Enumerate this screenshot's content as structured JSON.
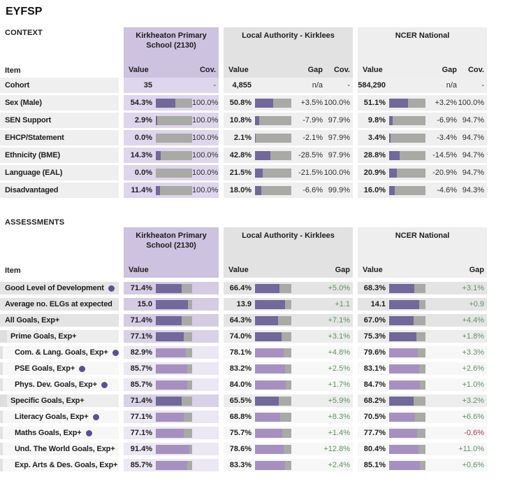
{
  "title": "EYFSP",
  "colors": {
    "school_header_bg": "#cdc2df",
    "school_cell_bg": "#ded6ec",
    "la_header_bg": "#e2e2e2",
    "nat_header_bg": "#eeeeee",
    "row_bg_context": "#efefef",
    "row_bg_l1": "#e4e4e4",
    "row_bg_l2": "#ededed",
    "row_bg_l3": "#f7f7f7",
    "school_bg_l1": "#d5cce4",
    "school_bg_l2": "#d9d1e8",
    "school_bg_l3": "#ece7f4",
    "bar_dark": "#72689a",
    "bar_light": "#a690c0",
    "bar_track": "#a9a9a6",
    "gap_positive": "#5e9160",
    "gap_negative": "#a53c52",
    "dot": "#5a5191"
  },
  "context": {
    "label": "CONTEXT",
    "item_header": "Item",
    "school": {
      "title": "Kirkheaton Primary School (2130)",
      "col_value": "Value",
      "col_cov": "Cov."
    },
    "la": {
      "title": "Local Authority - Kirklees",
      "col_value": "Value",
      "col_gap": "Gap",
      "col_cov": "Cov."
    },
    "nat": {
      "title": "NCER National",
      "col_value": "Value",
      "col_gap": "Gap",
      "col_cov": "Cov."
    },
    "rows": [
      {
        "label": "Cohort",
        "school": {
          "value": "35",
          "cov": "-"
        },
        "la": {
          "value": "4,855",
          "gap": "n/a",
          "cov": "-"
        },
        "nat": {
          "value": "584,290",
          "gap": "n/a",
          "cov": "-"
        }
      },
      {
        "label": "Sex (Male)",
        "school": {
          "value": "54.3%",
          "pct": 54.3,
          "cov": "100.0%"
        },
        "la": {
          "value": "50.8%",
          "pct": 50.8,
          "gap": "+3.5%",
          "cov": "100.0%"
        },
        "nat": {
          "value": "51.1%",
          "pct": 51.1,
          "gap": "+3.2%",
          "cov": "100.0%"
        }
      },
      {
        "label": "SEN Support",
        "school": {
          "value": "2.9%",
          "pct": 2.9,
          "cov": "100.0%"
        },
        "la": {
          "value": "10.8%",
          "pct": 10.8,
          "gap": "-7.9%",
          "cov": "97.9%"
        },
        "nat": {
          "value": "9.8%",
          "pct": 9.8,
          "gap": "-6.9%",
          "cov": "94.7%"
        }
      },
      {
        "label": "EHCP/Statement",
        "school": {
          "value": "0.0%",
          "pct": 0.0,
          "cov": "100.0%"
        },
        "la": {
          "value": "2.1%",
          "pct": 2.1,
          "gap": "-2.1%",
          "cov": "97.9%"
        },
        "nat": {
          "value": "3.4%",
          "pct": 3.4,
          "gap": "-3.4%",
          "cov": "94.7%"
        }
      },
      {
        "label": "Ethnicity (BME)",
        "school": {
          "value": "14.3%",
          "pct": 14.3,
          "cov": "100.0%"
        },
        "la": {
          "value": "42.8%",
          "pct": 42.8,
          "gap": "-28.5%",
          "cov": "97.9%"
        },
        "nat": {
          "value": "28.8%",
          "pct": 28.8,
          "gap": "-14.5%",
          "cov": "94.7%"
        }
      },
      {
        "label": "Language (EAL)",
        "school": {
          "value": "0.0%",
          "pct": 0.0,
          "cov": "100.0%"
        },
        "la": {
          "value": "21.5%",
          "pct": 21.5,
          "gap": "-21.5%",
          "cov": "100.0%"
        },
        "nat": {
          "value": "20.9%",
          "pct": 20.9,
          "gap": "-20.9%",
          "cov": "94.7%"
        }
      },
      {
        "label": "Disadvantaged",
        "school": {
          "value": "11.4%",
          "pct": 11.4,
          "cov": "100.0%"
        },
        "la": {
          "value": "18.0%",
          "pct": 18.0,
          "gap": "-6.6%",
          "cov": "99.9%"
        },
        "nat": {
          "value": "16.0%",
          "pct": 16.0,
          "gap": "-4.6%",
          "cov": "94.3%"
        }
      }
    ]
  },
  "assessments": {
    "label": "ASSESSMENTS",
    "item_header": "Item",
    "school": {
      "title": "Kirkheaton Primary School (2130)",
      "col_value": "Value"
    },
    "la": {
      "title": "Local Authority - Kirklees",
      "col_value": "Value",
      "col_gap": "Gap"
    },
    "nat": {
      "title": "NCER National",
      "col_value": "Value",
      "col_gap": "Gap"
    },
    "rows": [
      {
        "label": "Good Level of Development",
        "dot": true,
        "level": 1,
        "school": {
          "value": "71.4%",
          "pct": 71.4
        },
        "la": {
          "value": "66.4%",
          "pct": 66.4,
          "gap": "+5.0%"
        },
        "nat": {
          "value": "68.3%",
          "pct": 68.3,
          "gap": "+3.1%"
        }
      },
      {
        "label": "Average no. ELGs at expected",
        "dot": false,
        "level": 1,
        "school": {
          "value": "15.0",
          "pct": 88.2
        },
        "la": {
          "value": "13.9",
          "pct": 81.8,
          "gap": "+1.1"
        },
        "nat": {
          "value": "14.1",
          "pct": 82.9,
          "gap": "+0.9"
        }
      },
      {
        "label": "All Goals, Exp+",
        "dot": false,
        "level": 1,
        "school": {
          "value": "71.4%",
          "pct": 71.4
        },
        "la": {
          "value": "64.3%",
          "pct": 64.3,
          "gap": "+7.1%"
        },
        "nat": {
          "value": "67.0%",
          "pct": 67.0,
          "gap": "+4.4%"
        }
      },
      {
        "label": "Prime Goals, Exp+",
        "dot": false,
        "level": 2,
        "school": {
          "value": "77.1%",
          "pct": 77.1
        },
        "la": {
          "value": "74.0%",
          "pct": 74.0,
          "gap": "+3.1%"
        },
        "nat": {
          "value": "75.3%",
          "pct": 75.3,
          "gap": "+1.8%"
        }
      },
      {
        "label": "Com. & Lang. Goals, Exp+",
        "dot": true,
        "level": 3,
        "school": {
          "value": "82.9%",
          "pct": 82.9
        },
        "la": {
          "value": "78.1%",
          "pct": 78.1,
          "gap": "+4.8%"
        },
        "nat": {
          "value": "79.6%",
          "pct": 79.6,
          "gap": "+3.3%"
        }
      },
      {
        "label": "PSE Goals, Exp+",
        "dot": true,
        "level": 3,
        "school": {
          "value": "85.7%",
          "pct": 85.7
        },
        "la": {
          "value": "83.2%",
          "pct": 83.2,
          "gap": "+2.5%"
        },
        "nat": {
          "value": "83.1%",
          "pct": 83.1,
          "gap": "+2.6%"
        }
      },
      {
        "label": "Phys. Dev. Goals, Exp+",
        "dot": true,
        "level": 3,
        "school": {
          "value": "85.7%",
          "pct": 85.7
        },
        "la": {
          "value": "84.0%",
          "pct": 84.0,
          "gap": "+1.7%"
        },
        "nat": {
          "value": "84.7%",
          "pct": 84.7,
          "gap": "+1.0%"
        }
      },
      {
        "label": "Specific Goals, Exp+",
        "dot": false,
        "level": 2,
        "school": {
          "value": "71.4%",
          "pct": 71.4
        },
        "la": {
          "value": "65.5%",
          "pct": 65.5,
          "gap": "+5.9%"
        },
        "nat": {
          "value": "68.2%",
          "pct": 68.2,
          "gap": "+3.2%"
        }
      },
      {
        "label": "Literacy Goals, Exp+",
        "dot": true,
        "level": 3,
        "school": {
          "value": "77.1%",
          "pct": 77.1
        },
        "la": {
          "value": "68.8%",
          "pct": 68.8,
          "gap": "+8.3%"
        },
        "nat": {
          "value": "70.5%",
          "pct": 70.5,
          "gap": "+6.6%"
        }
      },
      {
        "label": "Maths Goals, Exp+",
        "dot": true,
        "level": 3,
        "school": {
          "value": "77.1%",
          "pct": 77.1
        },
        "la": {
          "value": "75.7%",
          "pct": 75.7,
          "gap": "+1.4%"
        },
        "nat": {
          "value": "77.7%",
          "pct": 77.7,
          "gap": "-0.6%"
        }
      },
      {
        "label": "Und. The World Goals, Exp+",
        "dot": false,
        "level": 3,
        "school": {
          "value": "91.4%",
          "pct": 91.4
        },
        "la": {
          "value": "78.6%",
          "pct": 78.6,
          "gap": "+12.8%"
        },
        "nat": {
          "value": "80.4%",
          "pct": 80.4,
          "gap": "+11.0%"
        }
      },
      {
        "label": "Exp. Arts & Des. Goals, Exp+",
        "dot": false,
        "level": 3,
        "school": {
          "value": "85.7%",
          "pct": 85.7
        },
        "la": {
          "value": "83.3%",
          "pct": 83.3,
          "gap": "+2.4%"
        },
        "nat": {
          "value": "85.1%",
          "pct": 85.1,
          "gap": "+0.6%"
        }
      }
    ]
  }
}
